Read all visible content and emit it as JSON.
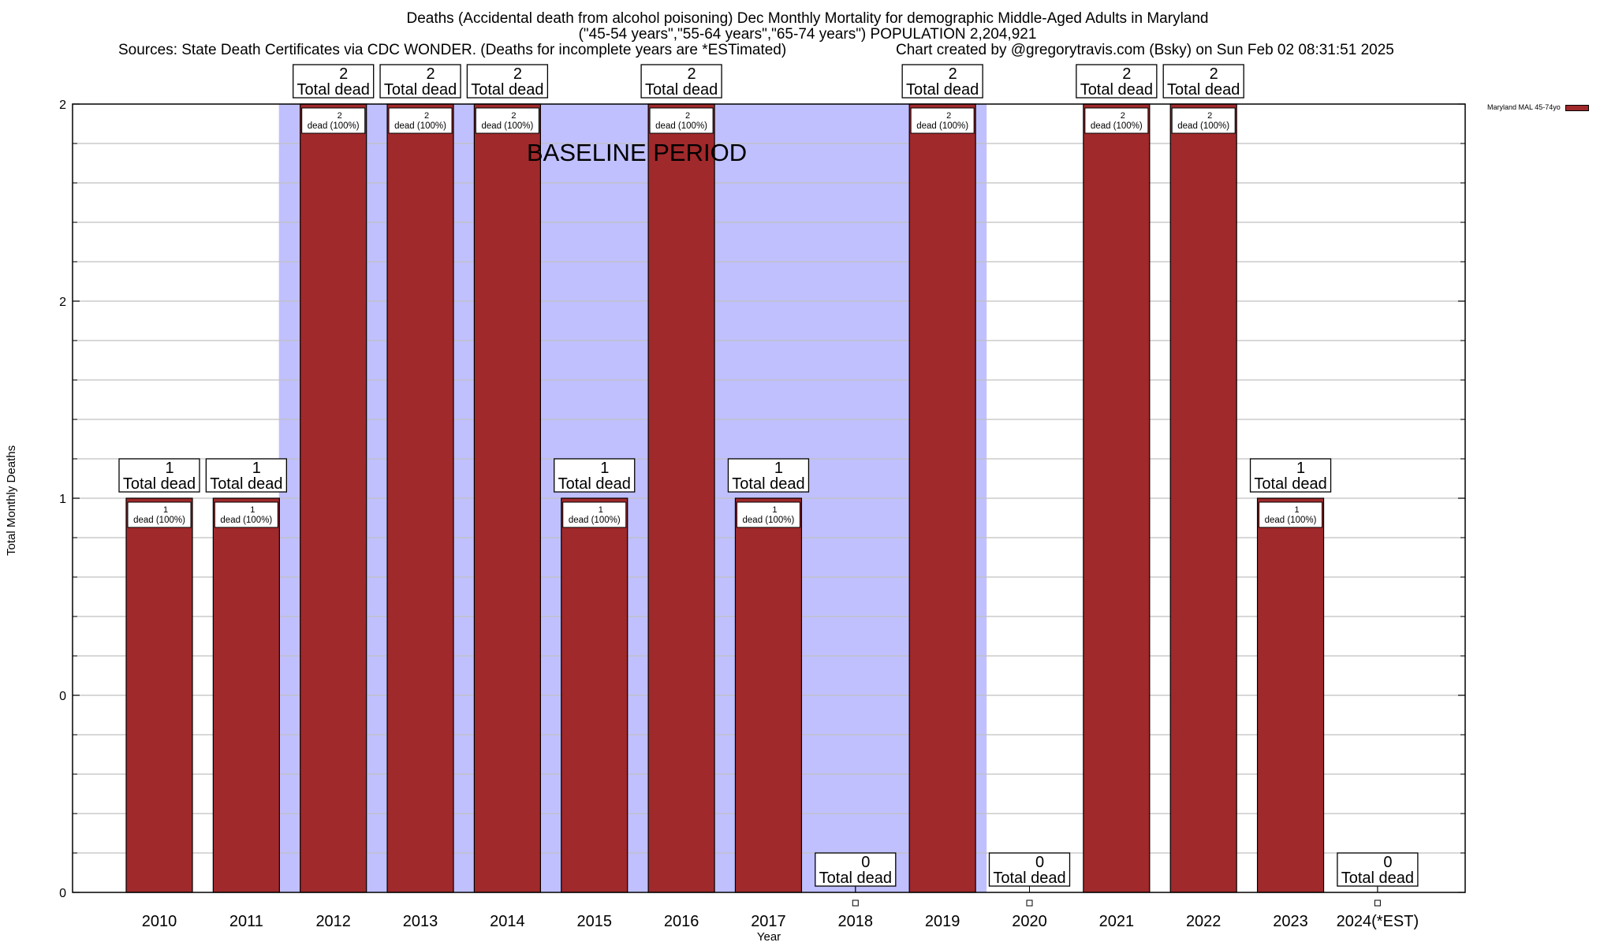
{
  "header": {
    "title_line1": "Deaths (Accidental death from alcohol poisoning) Dec Monthly Mortality for demographic Middle-Aged Adults in Maryland",
    "title_line2": "(\"45-54 years\",\"55-64 years\",\"65-74 years\") POPULATION 2,204,921",
    "sources": "Sources: State Death Certificates via CDC WONDER. (Deaths for incomplete years are *ESTimated)",
    "credit": "Chart created by @gregorytravis.com (Bsky) on Sun Feb 02 08:31:51 2025"
  },
  "chart_data": {
    "type": "bar",
    "title": "Deaths (Accidental death from alcohol poisoning) Dec Monthly Mortality for demographic Middle-Aged Adults in Maryland",
    "xlabel": "Year",
    "ylabel": "Total Monthly Deaths",
    "ylim": [
      0,
      2
    ],
    "grid": true,
    "legend_position": "top-right",
    "y_tick_values": [
      0,
      0.5,
      1,
      1.5,
      2
    ],
    "y_tick_labels": [
      "0",
      "0",
      "1",
      "2",
      "2"
    ],
    "categories": [
      "2010",
      "2011",
      "2012",
      "2013",
      "2014",
      "2015",
      "2016",
      "2017",
      "2018",
      "2019",
      "2020",
      "2021",
      "2022",
      "2023",
      "2024(*EST)"
    ],
    "series": [
      {
        "name": "Maryland MAL 45-74yo",
        "color": "#a0292b",
        "values": [
          1,
          1,
          2,
          2,
          2,
          1,
          2,
          1,
          0,
          2,
          0,
          2,
          2,
          1,
          0
        ]
      }
    ],
    "total_labels": [
      "1",
      "1",
      "2",
      "2",
      "2",
      "1",
      "2",
      "1",
      "0",
      "2",
      "0",
      "2",
      "2",
      "1",
      "0"
    ],
    "total_label_suffix": "Total dead",
    "bar_labels": [
      "1",
      "1",
      "2",
      "2",
      "2",
      "1",
      "2",
      "1",
      "",
      "2",
      "",
      "2",
      "2",
      "1",
      ""
    ],
    "bar_label_suffix": "dead (100%)",
    "shaded_region": {
      "label": "BASELINE PERIOD",
      "from": "2012",
      "to": "2019",
      "color": "#c0c0ff"
    },
    "bar_color": "#a0292b",
    "grid_color": "#c0c0c0"
  }
}
